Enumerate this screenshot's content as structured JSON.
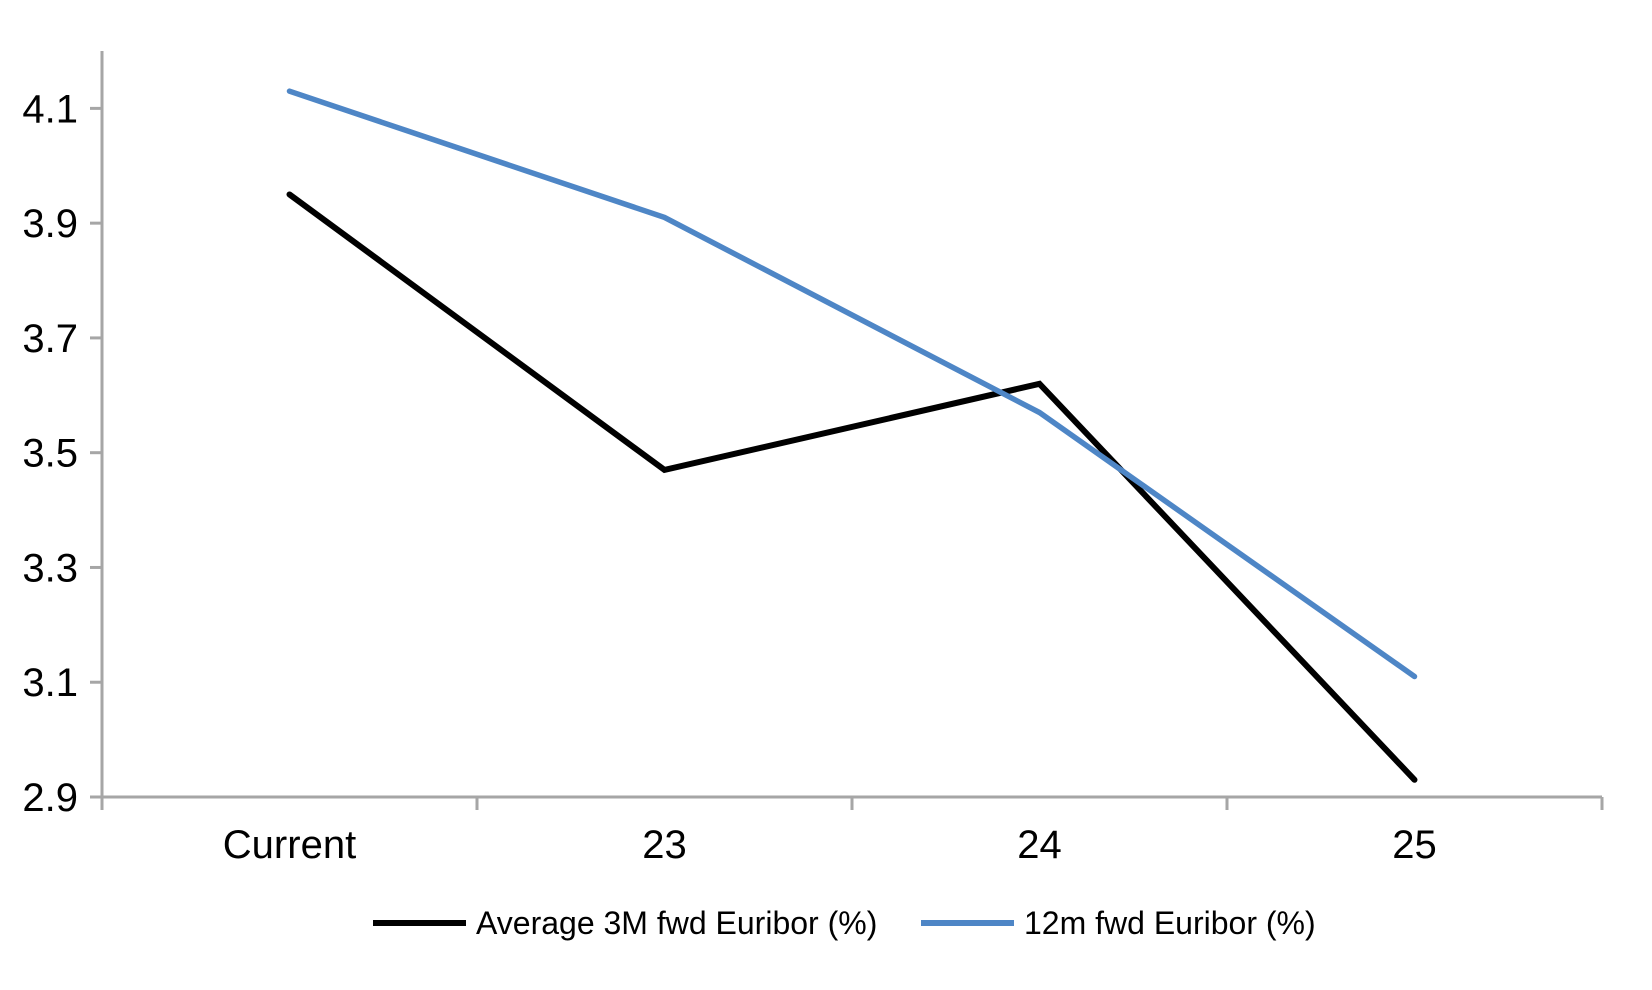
{
  "chart_data": {
    "type": "line",
    "categories": [
      "Current",
      "23",
      "24",
      "25"
    ],
    "series": [
      {
        "name": "Average 3M fwd Euribor (%)",
        "color": "#000000",
        "values": [
          3.95,
          3.47,
          3.62,
          2.93
        ]
      },
      {
        "name": "12m fwd Euribor (%)",
        "color": "#4E86C6",
        "values": [
          4.13,
          3.91,
          3.57,
          3.11
        ]
      }
    ],
    "title": "",
    "xlabel": "",
    "ylabel": "",
    "ylim": [
      2.9,
      4.2
    ],
    "yticks": [
      2.9,
      3.1,
      3.3,
      3.5,
      3.7,
      3.9,
      4.1
    ],
    "ytick_format_decimals": 1,
    "grid": false,
    "legend_position": "bottom",
    "axis_color": "#A6A6A6",
    "text_color": "#000000",
    "background_color": "#FFFFFF"
  }
}
